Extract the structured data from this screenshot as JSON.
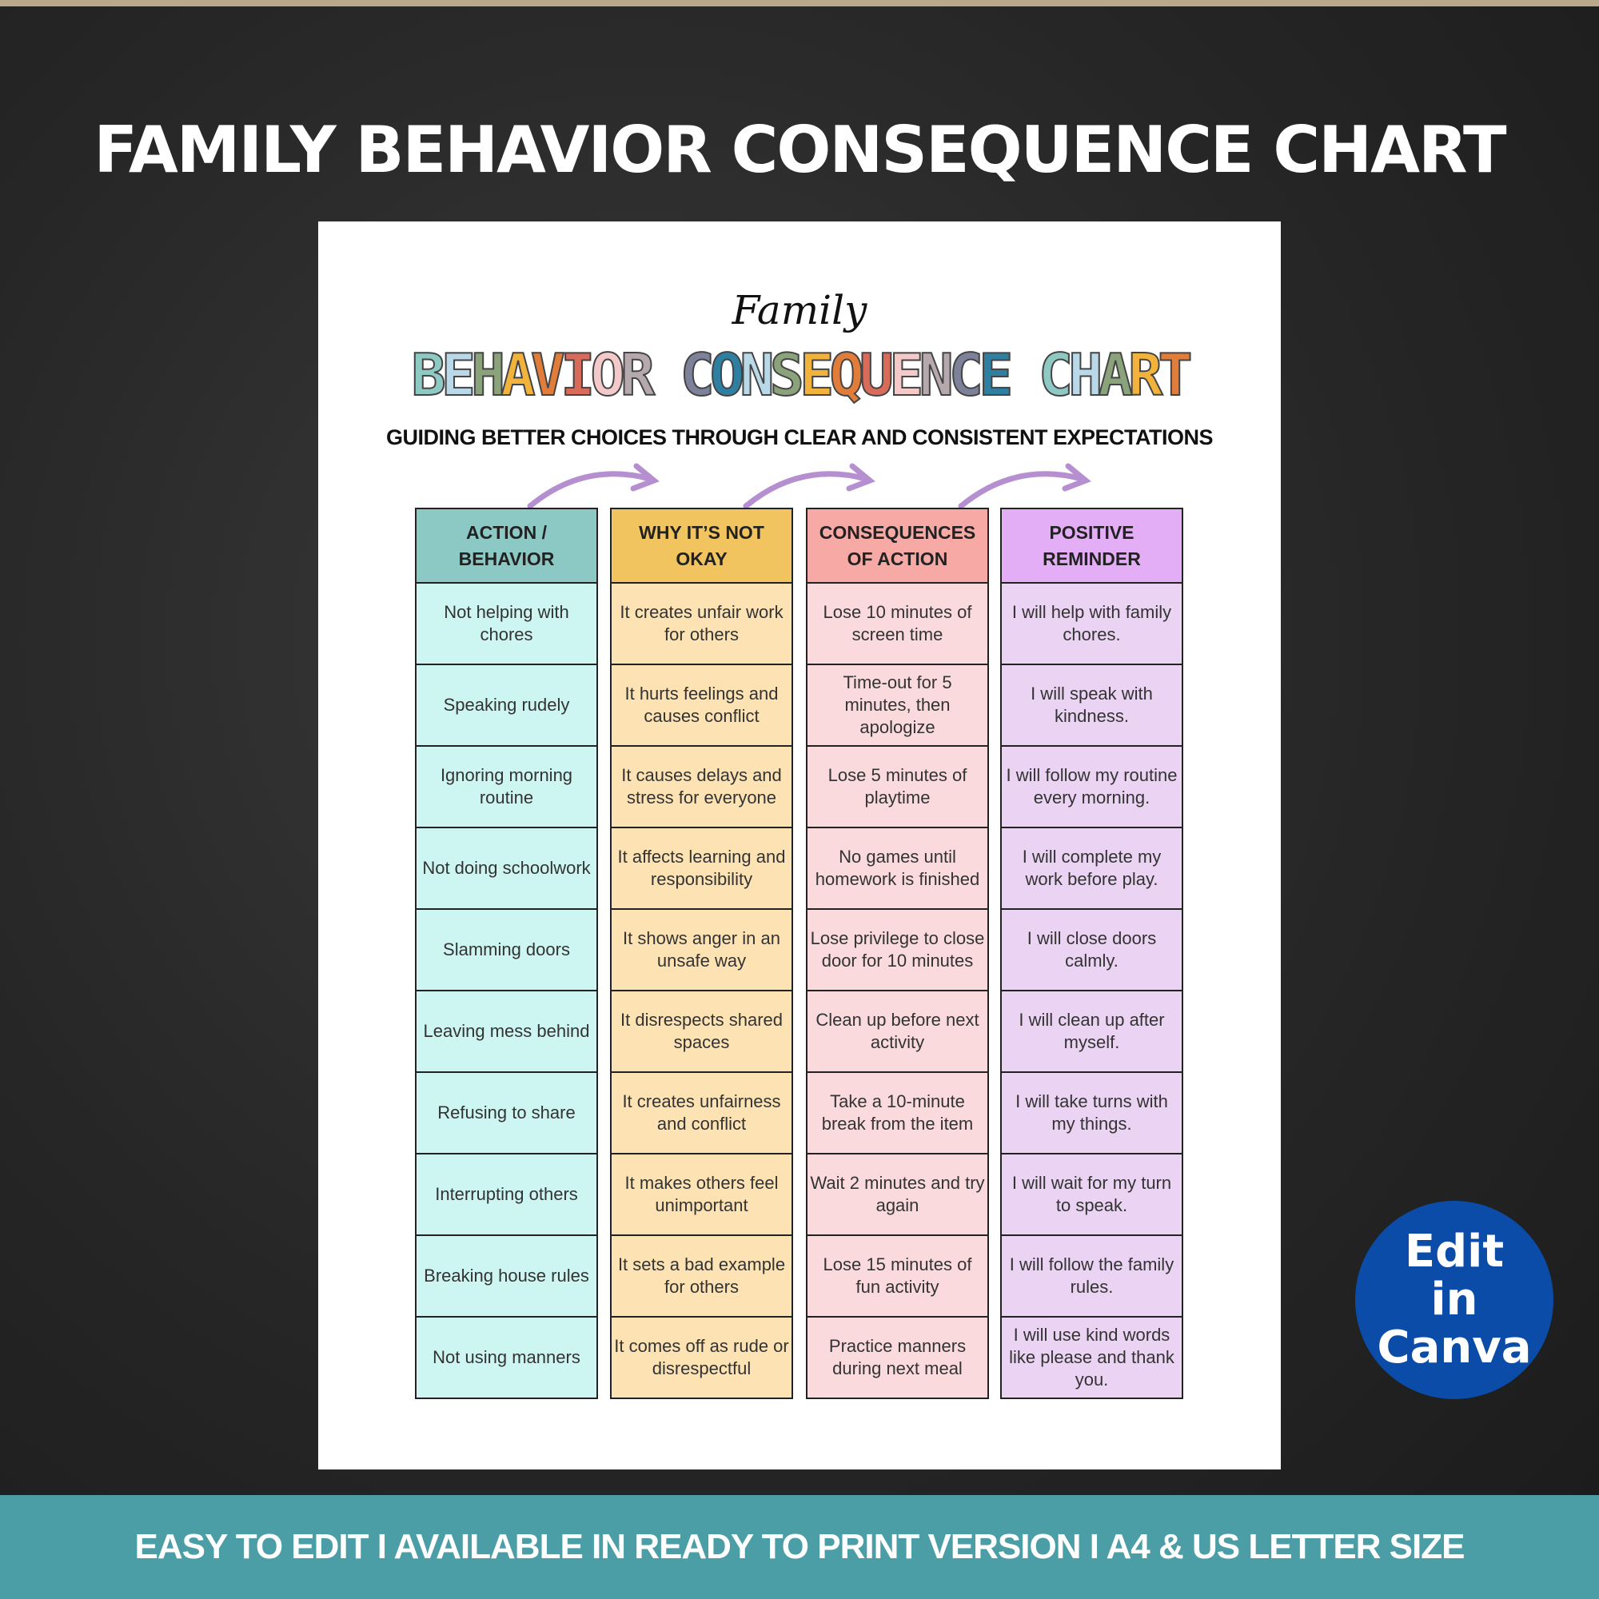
{
  "banner_title": "FAMILY BEHAVIOR CONSEQUENCE CHART",
  "sheet": {
    "script_title": "Family",
    "title": "BEHAVIOR CONSEQUENCE CHART",
    "title_letter_colors": [
      "#8fc9c4",
      "#b9d8e8",
      "#8aa37a",
      "#f2b33d",
      "#e07d3a",
      "#d96b5a",
      "#f4c9c9",
      "#b6a9ae",
      "#7d8199",
      "#2f7fa3",
      "#b9d8e8",
      "#8aa37a",
      "#f2b33d",
      "#e07d3a",
      "#d96b5a",
      "#f4c9c9",
      "#b6a9ae",
      "#7d8199",
      "#2f7fa3",
      "#8fc9c4",
      "#b9d8e8",
      "#8aa37a",
      "#f2b33d",
      "#e07d3a",
      "#f2b33d",
      "#e07d3a"
    ],
    "subtitle": "GUIDING BETTER CHOICES THROUGH CLEAR AND CONSISTENT EXPECTATIONS",
    "arrow_color": "#b58fcf",
    "columns": [
      {
        "header": "ACTION /\nBEHAVIOR",
        "header_color": "#8cc8c4",
        "cell_color": "#cdf6f3",
        "cells": [
          "Not helping with chores",
          "Speaking rudely",
          "Ignoring morning routine",
          "Not doing schoolwork",
          "Slamming doors",
          "Leaving mess behind",
          "Refusing to share",
          "Interrupting others",
          "Breaking house rules",
          "Not using manners"
        ]
      },
      {
        "header": "WHY IT’S NOT\nOKAY",
        "header_color": "#f1c45f",
        "cell_color": "#fde3b3",
        "cells": [
          "It creates unfair work for others",
          "It hurts feelings and causes conflict",
          "It causes delays and stress for everyone",
          "It affects learning and responsibility",
          "It shows anger in an unsafe way",
          "It disrespects shared spaces",
          "It creates unfairness and conflict",
          "It makes others feel unimportant",
          "It sets a bad example for others",
          "It comes off as rude or disrespectful"
        ]
      },
      {
        "header": "CONSEQUENCES\nOF ACTION",
        "header_color": "#f7a9a6",
        "cell_color": "#fadadd",
        "cells": [
          "Lose 10 minutes of screen time",
          "Time-out for 5 minutes, then apologize",
          "Lose 5 minutes of playtime",
          "No games until homework is finished",
          "Lose privilege to close door for 10 minutes",
          "Clean up before next activity",
          "Take a 10-minute break from the item",
          "Wait 2 minutes and try again",
          "Lose 15 minutes of fun activity",
          "Practice manners during next meal"
        ]
      },
      {
        "header": "POSITIVE\nREMINDER",
        "header_color": "#e4aef7",
        "cell_color": "#ebd3f3",
        "cells": [
          "I will help with family chores.",
          "I will speak with kindness.",
          "I will follow my routine every morning.",
          "I will complete my work before play.",
          "I will close doors calmly.",
          "I will clean up after myself.",
          "I will take turns with my things.",
          "I will wait for my turn to speak.",
          "I will follow the family rules.",
          "I will use kind words like please and thank you."
        ]
      }
    ]
  },
  "canva_badge": {
    "line1": "Edit",
    "line2": "in",
    "line3": "Canva",
    "color": "#0a4ca8"
  },
  "bottom_band": "EASY TO EDIT I AVAILABLE IN READY TO PRINT VERSION I A4 & US LETTER SIZE"
}
